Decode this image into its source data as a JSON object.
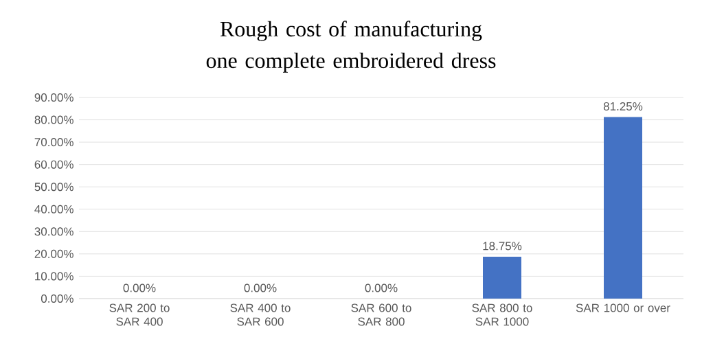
{
  "chart_data": {
    "type": "bar",
    "title": "Rough cost of manufacturing one complete embroidered dress",
    "categories": [
      "SAR 200 to SAR 400",
      "SAR 400 to SAR 600",
      "SAR 600 to SAR 800",
      "SAR 800 to SAR 1000",
      "SAR 1000 or over"
    ],
    "values": [
      0,
      0,
      0,
      18.75,
      81.25
    ],
    "value_labels": [
      "0.00%",
      "0.00%",
      "0.00%",
      "18.75%",
      "81.25%"
    ],
    "color": "#4472c4",
    "ylim": [
      0,
      90
    ],
    "yticks": [
      {
        "value": 0,
        "label": "0.00%"
      },
      {
        "value": 10,
        "label": "10.00%"
      },
      {
        "value": 20,
        "label": "20.00%"
      },
      {
        "value": 30,
        "label": "30.00%"
      },
      {
        "value": 40,
        "label": "40.00%"
      },
      {
        "value": 50,
        "label": "50.00%"
      },
      {
        "value": 60,
        "label": "60.00%"
      },
      {
        "value": 70,
        "label": "70.00%"
      },
      {
        "value": 80,
        "label": "80.00%"
      },
      {
        "value": 90,
        "label": "90.00%"
      }
    ],
    "grid": "y"
  }
}
